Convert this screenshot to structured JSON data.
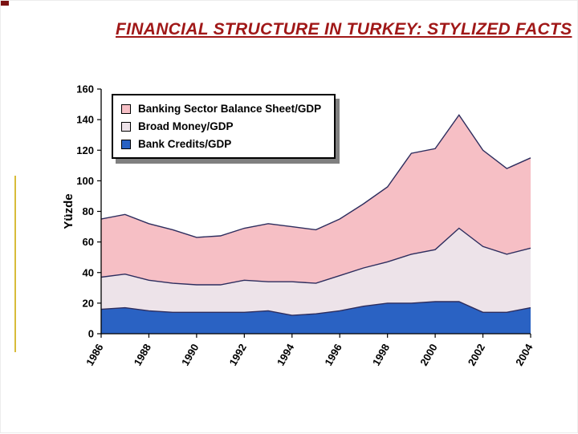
{
  "slide": {
    "title": "FINANCIAL STRUCTURE IN TURKEY: STYLIZED FACTS",
    "title_color": "#a01818",
    "accent_line_color": "#d8bc3a",
    "corner_color": "#7a1212"
  },
  "chart_data": {
    "type": "area",
    "title": "",
    "xlabel": "",
    "ylabel": "Yüzde",
    "ylim": [
      0,
      160
    ],
    "yticks": [
      0,
      20,
      40,
      60,
      80,
      100,
      120,
      140,
      160
    ],
    "x": [
      1986,
      1987,
      1988,
      1989,
      1990,
      1991,
      1992,
      1993,
      1994,
      1995,
      1996,
      1997,
      1998,
      1999,
      2000,
      2001,
      2002,
      2003,
      2004
    ],
    "xtick_labels": [
      "1986",
      "1988",
      "1990",
      "1992",
      "1994",
      "1996",
      "1998",
      "2000",
      "2002",
      "2004"
    ],
    "grid": false,
    "legend_position": "top-left",
    "line_color": "#2d2d5e",
    "axis_color": "#000000",
    "plot_bg": "#ffffff",
    "series": [
      {
        "name": "Banking Sector Balance Sheet/GDP",
        "color": "#f6bfc5",
        "values": [
          75,
          78,
          72,
          68,
          63,
          64,
          69,
          72,
          70,
          68,
          75,
          85,
          96,
          118,
          121,
          143,
          120,
          108,
          115
        ]
      },
      {
        "name": "Broad Money/GDP",
        "color": "#ede3e9",
        "values": [
          37,
          39,
          35,
          33,
          32,
          32,
          35,
          34,
          34,
          33,
          38,
          43,
          47,
          52,
          55,
          69,
          57,
          52,
          56
        ]
      },
      {
        "name": "Bank Credits/GDP",
        "color": "#2a62c3",
        "values": [
          16,
          17,
          15,
          14,
          14,
          14,
          14,
          15,
          12,
          13,
          15,
          18,
          20,
          20,
          21,
          21,
          14,
          14,
          17
        ]
      }
    ]
  }
}
